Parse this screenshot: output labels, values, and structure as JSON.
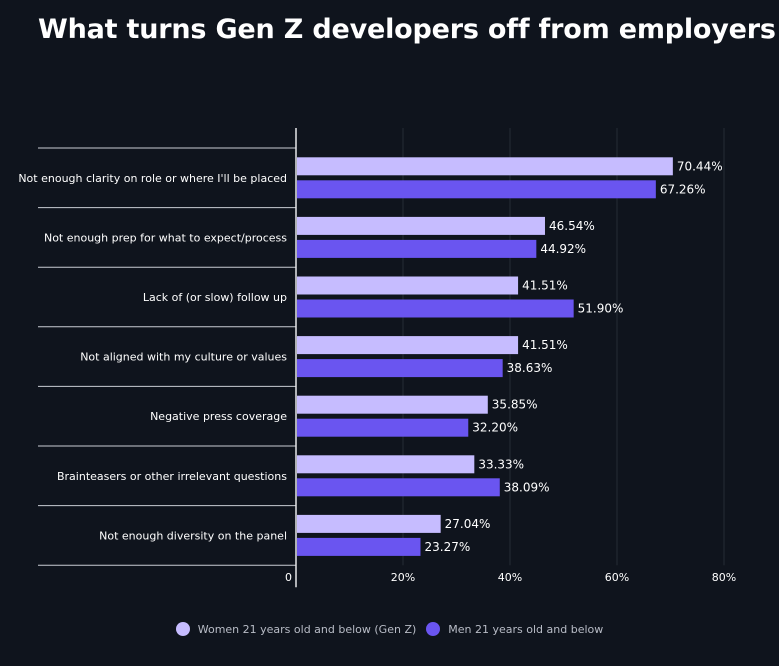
{
  "title": "What turns Gen Z developers off from employers",
  "chart_data": {
    "type": "bar",
    "orientation": "horizontal",
    "categories": [
      "Not enough clarity on role or where I'll be placed",
      "Not enough prep for what to expect/process",
      "Lack of (or slow) follow up",
      "Not aligned with my culture or values",
      "Negative press coverage",
      "Brainteasers or other irrelevant questions",
      "Not enough diversity on the panel"
    ],
    "series": [
      {
        "name": "Women 21 years old and below (Gen Z)",
        "color": "#c6bcff",
        "values": [
          70.44,
          46.54,
          41.51,
          41.51,
          35.85,
          33.33,
          27.04
        ],
        "labels": [
          "70.44%",
          "46.54%",
          "41.51%",
          "41.51%",
          "35.85%",
          "33.33%",
          "27.04%"
        ]
      },
      {
        "name": "Men 21 years old and below",
        "color": "#6a55f0",
        "values": [
          67.26,
          44.92,
          51.9,
          38.63,
          32.2,
          38.09,
          23.27
        ],
        "labels": [
          "67.26%",
          "44.92%",
          "51.90%",
          "38.63%",
          "32.20%",
          "38.09%",
          "23.27%"
        ]
      }
    ],
    "xlim": [
      0,
      80
    ],
    "xticks": [
      0,
      20,
      40,
      60,
      80
    ],
    "xtick_labels": [
      "0",
      "20%",
      "40%",
      "60%",
      "80%"
    ],
    "grid": true,
    "legend": "bottom-center"
  },
  "colors": {
    "background": "#0f141d",
    "grid": "#262b35",
    "axis": "#e6e6ea",
    "separator": "#c9ccd3"
  }
}
